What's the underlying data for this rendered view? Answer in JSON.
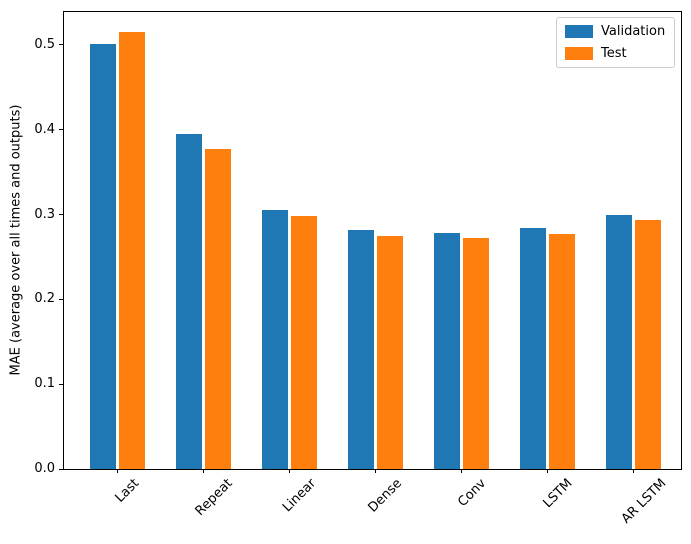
{
  "chart_data": {
    "type": "bar",
    "title": "",
    "xlabel": "",
    "ylabel": "MAE (average over all times and outputs)",
    "categories": [
      "Last",
      "Repeat",
      "Linear",
      "Dense",
      "Conv",
      "LSTM",
      "AR LSTM"
    ],
    "series": [
      {
        "name": "Validation",
        "color": "#1f77b4",
        "values": [
          0.501,
          0.395,
          0.305,
          0.282,
          0.278,
          0.284,
          0.3
        ]
      },
      {
        "name": "Test",
        "color": "#ff7f0e",
        "values": [
          0.515,
          0.377,
          0.298,
          0.275,
          0.272,
          0.277,
          0.294
        ]
      }
    ],
    "ylim": [
      0,
      0.54
    ],
    "yticks": [
      "0.0",
      "0.1",
      "0.2",
      "0.3",
      "0.4",
      "0.5"
    ],
    "x_tick_rotation": 45,
    "grid": false,
    "legend_position": "upper right",
    "axis_color": "#000000",
    "background_color": "#ffffff"
  }
}
